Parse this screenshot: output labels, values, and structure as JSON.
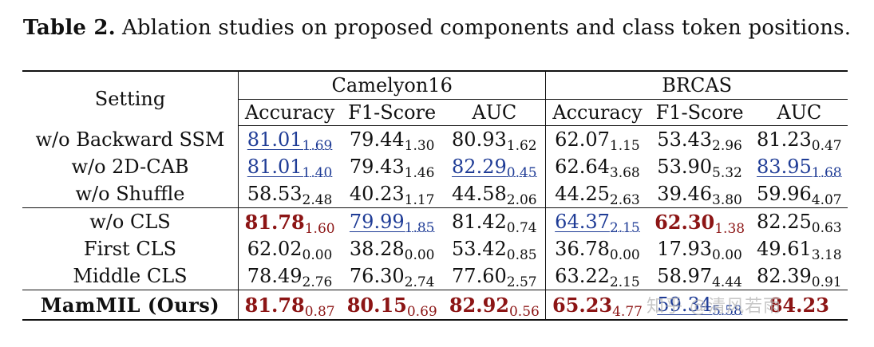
{
  "caption": {
    "label": "Table 2.",
    "text": "Ablation studies on proposed components and class token positions."
  },
  "header": {
    "setting": "Setting",
    "groups": [
      "Camelyon16",
      "BRCAS"
    ],
    "metrics": [
      "Accuracy",
      "F1-Score",
      "AUC",
      "Accuracy",
      "F1-Score",
      "AUC"
    ]
  },
  "rows": [
    {
      "setting": "w/o Backward SSM",
      "cells": [
        {
          "v": "81.01",
          "s": "1.69",
          "style": "second"
        },
        {
          "v": "79.44",
          "s": "1.30",
          "style": ""
        },
        {
          "v": "80.93",
          "s": "1.62",
          "style": ""
        },
        {
          "v": "62.07",
          "s": "1.15",
          "style": ""
        },
        {
          "v": "53.43",
          "s": "2.96",
          "style": ""
        },
        {
          "v": "81.23",
          "s": "0.47",
          "style": ""
        }
      ]
    },
    {
      "setting": "w/o 2D-CAB",
      "cells": [
        {
          "v": "81.01",
          "s": "1.40",
          "style": "second"
        },
        {
          "v": "79.43",
          "s": "1.46",
          "style": ""
        },
        {
          "v": "82.29",
          "s": "0.45",
          "style": "second"
        },
        {
          "v": "62.64",
          "s": "3.68",
          "style": ""
        },
        {
          "v": "53.90",
          "s": "5.32",
          "style": ""
        },
        {
          "v": "83.95",
          "s": "1.68",
          "style": "second"
        }
      ]
    },
    {
      "setting": "w/o Shuffle",
      "cells": [
        {
          "v": "58.53",
          "s": "2.48",
          "style": ""
        },
        {
          "v": "40.23",
          "s": "1.17",
          "style": ""
        },
        {
          "v": "44.58",
          "s": "2.06",
          "style": ""
        },
        {
          "v": "44.25",
          "s": "2.63",
          "style": ""
        },
        {
          "v": "39.46",
          "s": "3.80",
          "style": ""
        },
        {
          "v": "59.96",
          "s": "4.07",
          "style": ""
        }
      ]
    },
    {
      "setting": "w/o CLS",
      "cells": [
        {
          "v": "81.78",
          "s": "1.60",
          "style": "best"
        },
        {
          "v": "79.99",
          "s": "1.85",
          "style": "second"
        },
        {
          "v": "81.42",
          "s": "0.74",
          "style": ""
        },
        {
          "v": "64.37",
          "s": "2.15",
          "style": "second"
        },
        {
          "v": "62.30",
          "s": "1.38",
          "style": "best"
        },
        {
          "v": "82.25",
          "s": "0.63",
          "style": ""
        }
      ]
    },
    {
      "setting": "First CLS",
      "cells": [
        {
          "v": "62.02",
          "s": "0.00",
          "style": ""
        },
        {
          "v": "38.28",
          "s": "0.00",
          "style": ""
        },
        {
          "v": "53.42",
          "s": "0.85",
          "style": ""
        },
        {
          "v": "36.78",
          "s": "0.00",
          "style": ""
        },
        {
          "v": "17.93",
          "s": "0.00",
          "style": ""
        },
        {
          "v": "49.61",
          "s": "3.18",
          "style": ""
        }
      ]
    },
    {
      "setting": "Middle CLS",
      "cells": [
        {
          "v": "78.49",
          "s": "2.76",
          "style": ""
        },
        {
          "v": "76.30",
          "s": "2.74",
          "style": ""
        },
        {
          "v": "77.60",
          "s": "2.57",
          "style": ""
        },
        {
          "v": "63.22",
          "s": "2.15",
          "style": ""
        },
        {
          "v": "58.97",
          "s": "4.44",
          "style": ""
        },
        {
          "v": "82.39",
          "s": "0.91",
          "style": ""
        }
      ]
    },
    {
      "setting": "MamMIL (Ours)",
      "cells": [
        {
          "v": "81.78",
          "s": "0.87",
          "style": "best"
        },
        {
          "v": "80.15",
          "s": "0.69",
          "style": "best"
        },
        {
          "v": "82.92",
          "s": "0.56",
          "style": "best"
        },
        {
          "v": "65.23",
          "s": "4.77",
          "style": "best"
        },
        {
          "v": "59.34",
          "s": "5.58",
          "style": "second"
        },
        {
          "v": "84.23",
          "s": "",
          "style": "best"
        }
      ]
    }
  ],
  "watermark": "知乎 @清风若雨"
}
